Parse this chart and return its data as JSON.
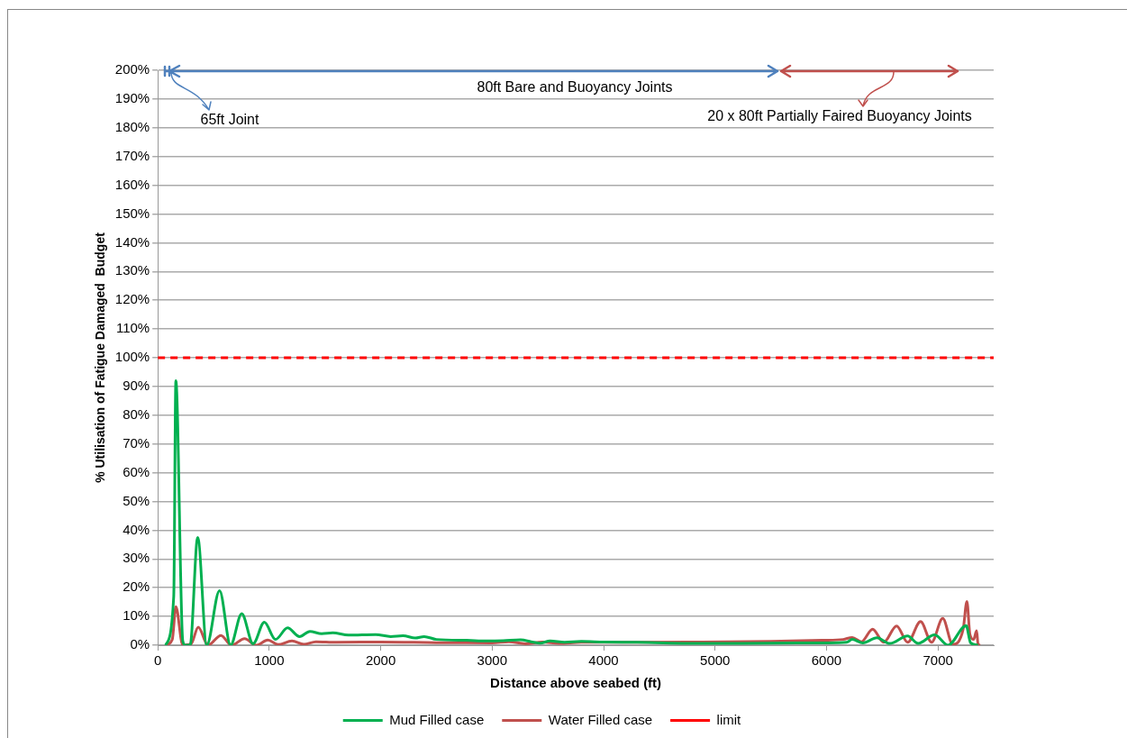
{
  "chart_data": {
    "type": "line",
    "xlabel": "Distance above seabed (ft)",
    "ylabel": "% Utilisation of Fatigue Damaged  Budget",
    "xlim": [
      0,
      7500
    ],
    "xticks": [
      0,
      1000,
      2000,
      3000,
      4000,
      5000,
      6000,
      7000
    ],
    "ylim": [
      0,
      200
    ],
    "yticks": [
      {
        "value": 0,
        "label": "0%"
      },
      {
        "value": 10,
        "label": "10%"
      },
      {
        "value": 20,
        "label": "20%"
      },
      {
        "value": 30,
        "label": "30%"
      },
      {
        "value": 40,
        "label": "40%"
      },
      {
        "value": 50,
        "label": "50%"
      },
      {
        "value": 60,
        "label": "60%"
      },
      {
        "value": 70,
        "label": "70%"
      },
      {
        "value": 80,
        "label": "80%"
      },
      {
        "value": 90,
        "label": "90%"
      },
      {
        "value": 100,
        "label": "100%"
      },
      {
        "value": 110,
        "label": "110%"
      },
      {
        "value": 120,
        "label": "120%"
      },
      {
        "value": 130,
        "label": "130%"
      },
      {
        "value": 140,
        "label": "140%"
      },
      {
        "value": 150,
        "label": "150%"
      },
      {
        "value": 160,
        "label": "160%"
      },
      {
        "value": 170,
        "label": "170%"
      },
      {
        "value": 180,
        "label": "180%"
      },
      {
        "value": 190,
        "label": "190%"
      },
      {
        "value": 200,
        "label": "200%"
      }
    ],
    "grid": "y",
    "legend": "bottom",
    "series": [
      {
        "name": "Mud Filled case",
        "color": "#00b050",
        "x": [
          70,
          143,
          162,
          224,
          247,
          290,
          358,
          439,
          554,
          653,
          753,
          855,
          956,
          1056,
          1164,
          1272,
          1365,
          1470,
          1570,
          1710,
          1955,
          2090,
          2200,
          2310,
          2390,
          2500,
          2770,
          2950,
          3100,
          3255,
          3350,
          3430,
          3520,
          3650,
          3800,
          4000,
          4300,
          4887,
          5500,
          6000,
          6180,
          6231,
          6326,
          6452,
          6567,
          6728,
          6822,
          6970,
          7091,
          7253,
          7293,
          7360
        ],
        "values": [
          0,
          17,
          92,
          1.5,
          0,
          0,
          37.5,
          0,
          19,
          0,
          11,
          0.5,
          8,
          2,
          6,
          3,
          4.8,
          4,
          4.3,
          3.5,
          3.7,
          3,
          3.3,
          2.5,
          3,
          2,
          1.7,
          1.5,
          1.6,
          1.9,
          1.2,
          0.7,
          1.5,
          1,
          1.3,
          1.1,
          1,
          0.6,
          0.7,
          0.8,
          1,
          2,
          0.8,
          2.6,
          0.6,
          3.2,
          0.6,
          3.6,
          0,
          6.8,
          0.8,
          0
        ]
      },
      {
        "name": "Water Filled case",
        "color": "#c0504d",
        "x": [
          70,
          130,
          162,
          224,
          300,
          363,
          450,
          567,
          661,
          779,
          882,
          987,
          1080,
          1204,
          1310,
          1419,
          1600,
          2000,
          2500,
          3000,
          3150,
          3300,
          3450,
          3600,
          3800,
          4300,
          4887,
          5500,
          5960,
          6150,
          6231,
          6312,
          6414,
          6513,
          6629,
          6728,
          6844,
          6943,
          7043,
          7132,
          7226,
          7260,
          7287,
          7320,
          7347,
          7360,
          7380
        ],
        "values": [
          0,
          2,
          13.4,
          0,
          0.5,
          6.3,
          0,
          3.4,
          0,
          2.3,
          0,
          1.8,
          0.2,
          1.5,
          0.3,
          1.2,
          1,
          1.1,
          0.9,
          0.8,
          1.2,
          0.5,
          1.1,
          0.6,
          1,
          1,
          1.1,
          1.3,
          1.7,
          2,
          2.7,
          1.2,
          5.6,
          1,
          6.7,
          1,
          8.2,
          1,
          9.3,
          0.3,
          5.5,
          15.2,
          3.7,
          2,
          5,
          0.3,
          0
        ]
      }
    ],
    "ref_lines": [
      {
        "axis": "y",
        "value": 100,
        "label": "limit",
        "color": "#ff0000",
        "line_style": "dashed"
      }
    ],
    "annotations": [
      "80ft Bare and Buoyancy Joints",
      "65ft Joint",
      "20 x 80ft Partially Faired Buoyancy Joints"
    ]
  }
}
